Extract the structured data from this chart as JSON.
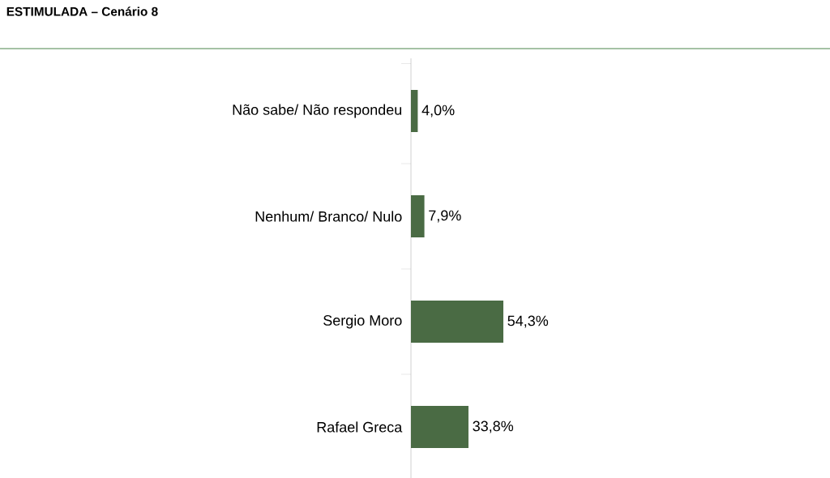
{
  "chart_data": {
    "type": "bar",
    "orientation": "horizontal",
    "title": "ESTIMULADA – Cenário 8",
    "categories": [
      "Não sabe/ Não respondeu",
      "Nenhum/ Branco/ Nulo",
      "Sergio Moro",
      "Rafael Greca"
    ],
    "values": [
      4.0,
      7.9,
      54.3,
      33.8
    ],
    "value_labels": [
      "4,0%",
      "7,9%",
      "54,3%",
      "33,8%"
    ],
    "color": "#4a6b44"
  }
}
